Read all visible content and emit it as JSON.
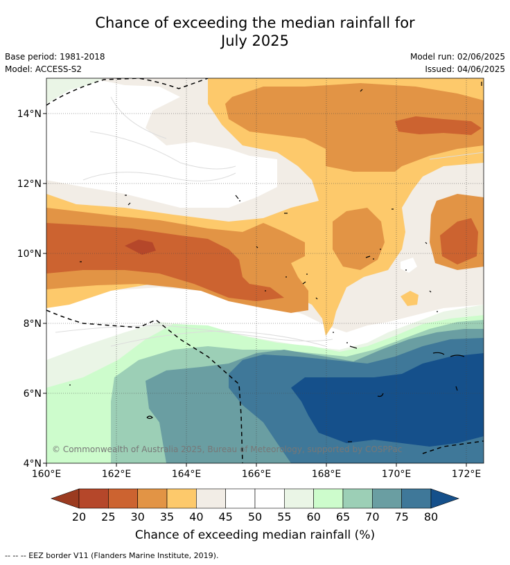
{
  "title_line1": "Chance of exceeding the median rainfall for",
  "title_line2": "July 2025",
  "base_period": "Base period: 1981-2018",
  "model": "Model: ACCESS-S2",
  "model_run": "Model run: 02/06/2025",
  "issued": "Issued: 04/06/2025",
  "copyright": "© Commonwealth of Australia 2025, Bureau of Meteorology, supported by COSPPac",
  "footer": "--  --  -- EEZ border V11 (Flanders Marine Institute, 2019).",
  "colorbar": {
    "label": "Chance of exceeding median rainfall (%)",
    "ticks": [
      "20",
      "25",
      "30",
      "35",
      "40",
      "45",
      "50",
      "55",
      "60",
      "65",
      "70",
      "75",
      "80"
    ],
    "colors": [
      "#9b3b20",
      "#b5472a",
      "#cc6330",
      "#e29445",
      "#fdc96b",
      "#f2ede6",
      "#ffffff",
      "#ffffff",
      "#eaf5e6",
      "#cdfccc",
      "#9ccfb6",
      "#6a9ea2",
      "#3f7899",
      "#15508b"
    ]
  },
  "map": {
    "x_ticks": [
      "160°E",
      "162°E",
      "164°E",
      "166°E",
      "168°E",
      "170°E",
      "172°E"
    ],
    "y_ticks": [
      "14°N",
      "12°N",
      "10°N",
      "8°N",
      "6°N",
      "4°N"
    ]
  }
}
